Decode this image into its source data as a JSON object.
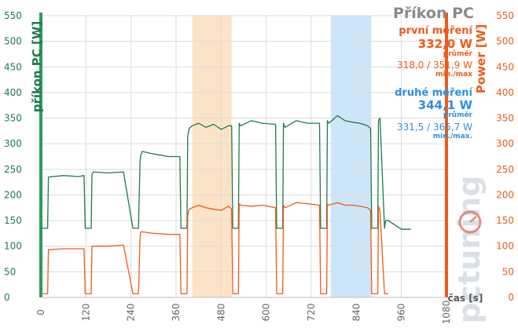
{
  "chart_data": {
    "type": "line",
    "title": "Příkon  PC",
    "xlabel": "čas [s]",
    "ylabel_left": "příkon PC [W]",
    "ylabel_right": "Power [W]",
    "xlim": [
      0,
      1080
    ],
    "ylim": [
      0,
      550
    ],
    "xticks": [
      0,
      120,
      240,
      360,
      480,
      600,
      720,
      840,
      960,
      1080
    ],
    "yticks": [
      0,
      50,
      100,
      150,
      200,
      250,
      300,
      350,
      400,
      450,
      500,
      550
    ],
    "grid": true,
    "watermark": "pctuning",
    "highlight_bands": [
      {
        "x": [
          403,
          508
        ],
        "color": "#fbd9b6"
      },
      {
        "x": [
          772,
          880
        ],
        "color": "#bcdcf7"
      }
    ],
    "annotations": {
      "first": {
        "title": "první měření",
        "avg": "332,0 W",
        "avg_label": "průměr",
        "minmax": "318,0 / 351,9 W",
        "minmax_label": "min./max"
      },
      "second": {
        "title": "druhé měření",
        "avg": "344,1 W",
        "avg_label": "průměr",
        "minmax": "331,5 / 365,7 W",
        "minmax_label": "min./max."
      }
    },
    "series": [
      {
        "color": "#1e7a4a",
        "x": [
          0,
          5,
          10,
          18,
          20,
          60,
          100,
          115,
          118,
          122,
          130,
          134,
          136,
          140,
          180,
          220,
          245,
          248,
          252,
          260,
          264,
          266,
          270,
          300,
          340,
          370,
          373,
          377,
          385,
          389,
          391,
          395,
          403,
          420,
          440,
          460,
          480,
          500,
          508,
          511,
          515,
          522,
          526,
          528,
          532,
          560,
          590,
          625,
          628,
          632,
          640,
          644,
          646,
          650,
          680,
          710,
          742,
          745,
          749,
          757,
          761,
          763,
          767,
          790,
          810,
          830,
          850,
          870,
          878,
          881,
          885,
          893,
          897,
          899,
          903,
          915,
          918,
          925,
          960,
          985
        ],
        "y": [
          135,
          135,
          135,
          135,
          235,
          238,
          236,
          238,
          135,
          135,
          135,
          135,
          240,
          245,
          243,
          245,
          135,
          135,
          135,
          135,
          265,
          278,
          285,
          280,
          275,
          275,
          135,
          135,
          135,
          135,
          315,
          330,
          335,
          340,
          332,
          338,
          328,
          335,
          335,
          135,
          135,
          135,
          135,
          340,
          335,
          345,
          340,
          338,
          135,
          135,
          135,
          135,
          340,
          332,
          345,
          340,
          340,
          135,
          135,
          135,
          135,
          345,
          340,
          355,
          345,
          342,
          340,
          335,
          330,
          135,
          135,
          135,
          135,
          345,
          350,
          135,
          150,
          150,
          133,
          133
        ]
      },
      {
        "color": "#ef5a1a",
        "x": [
          0,
          5,
          10,
          18,
          20,
          60,
          100,
          115,
          118,
          122,
          130,
          134,
          136,
          140,
          180,
          220,
          245,
          248,
          252,
          260,
          264,
          266,
          270,
          300,
          340,
          370,
          373,
          377,
          385,
          389,
          391,
          395,
          403,
          420,
          440,
          460,
          480,
          500,
          508,
          511,
          515,
          522,
          526,
          528,
          532,
          560,
          590,
          625,
          628,
          632,
          640,
          644,
          646,
          650,
          680,
          710,
          742,
          745,
          749,
          757,
          761,
          763,
          767,
          790,
          810,
          830,
          850,
          870,
          878,
          881,
          885,
          893,
          897,
          899,
          903,
          915,
          918,
          925
        ],
        "y": [
          7,
          7,
          7,
          7,
          93,
          95,
          95,
          95,
          7,
          7,
          7,
          7,
          100,
          100,
          100,
          102,
          7,
          7,
          7,
          7,
          115,
          128,
          128,
          125,
          123,
          123,
          7,
          7,
          7,
          7,
          160,
          172,
          175,
          180,
          175,
          172,
          170,
          178,
          172,
          7,
          7,
          7,
          7,
          183,
          180,
          178,
          180,
          175,
          7,
          7,
          7,
          7,
          180,
          175,
          185,
          183,
          180,
          7,
          7,
          7,
          7,
          182,
          180,
          185,
          180,
          180,
          178,
          175,
          170,
          7,
          7,
          7,
          7,
          178,
          170,
          7,
          7,
          7
        ]
      }
    ]
  }
}
